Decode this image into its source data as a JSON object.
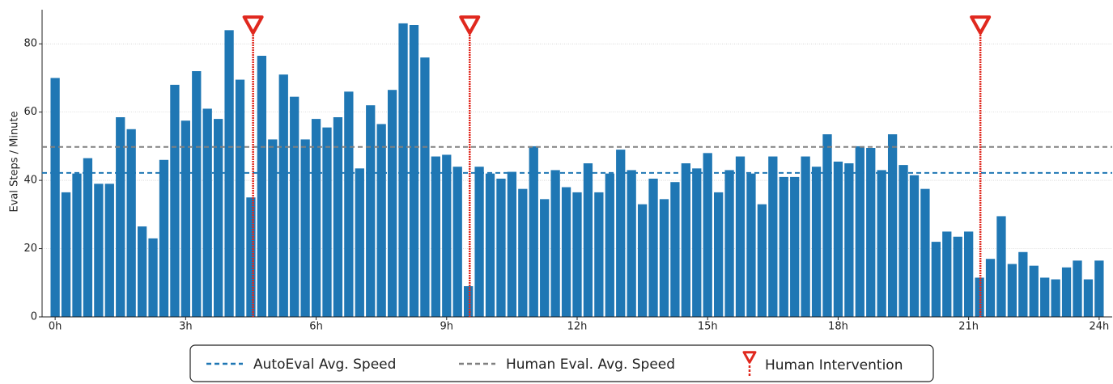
{
  "chart_data": {
    "type": "bar",
    "ylabel": "Eval Steps / Minute",
    "color": "#1f77b4",
    "x": [
      0,
      0.25,
      0.5,
      0.75,
      1,
      1.25,
      1.5,
      1.75,
      2,
      2.25,
      2.5,
      2.75,
      3,
      3.25,
      3.5,
      3.75,
      4,
      4.25,
      4.5,
      4.75,
      5,
      5.25,
      5.5,
      5.75,
      6,
      6.25,
      6.5,
      6.75,
      7,
      7.25,
      7.5,
      7.75,
      8,
      8.25,
      8.5,
      8.75,
      9,
      9.25,
      9.5,
      9.75,
      10,
      10.25,
      10.5,
      10.75,
      11,
      11.25,
      11.5,
      11.75,
      12,
      12.25,
      12.5,
      12.75,
      13,
      13.25,
      13.5,
      13.75,
      14,
      14.25,
      14.5,
      14.75,
      15,
      15.25,
      15.5,
      15.75,
      16,
      16.25,
      16.5,
      16.75,
      17,
      17.25,
      17.5,
      17.75,
      18,
      18.25,
      18.5,
      18.75,
      19,
      19.25,
      19.5,
      19.75,
      20,
      20.25,
      20.5,
      20.75,
      21,
      21.25,
      21.5,
      21.75,
      22,
      22.25,
      22.5,
      22.75,
      23,
      23.25,
      23.5,
      23.75,
      24
    ],
    "values": [
      70,
      36.5,
      42,
      46.5,
      39,
      39,
      58.5,
      55,
      26.5,
      23,
      46,
      68,
      57.5,
      72,
      61,
      58,
      84,
      69.5,
      35,
      76.5,
      52,
      71,
      64.5,
      52,
      58,
      55.5,
      58.5,
      66,
      43.5,
      62,
      56.5,
      66.5,
      86,
      85.5,
      76,
      47,
      47.5,
      44,
      9,
      44,
      42,
      40.5,
      42.5,
      37.5,
      50,
      34.5,
      43,
      38,
      36.5,
      45,
      36.5,
      42,
      49,
      43,
      33,
      40.5,
      34.5,
      39.5,
      45,
      43.5,
      48,
      36.5,
      43,
      47,
      42,
      33,
      47,
      41,
      41,
      47,
      44,
      53.5,
      45.5,
      45,
      50,
      49.5,
      43,
      53.5,
      44.5,
      41.5,
      37.5,
      22,
      25,
      23.5,
      25,
      11.5,
      17,
      29.5,
      15.5,
      19,
      15,
      11.5,
      11,
      14.5,
      16.5,
      11,
      16.5
    ],
    "reference_lines": [
      {
        "name": "AutoEval Avg. Speed",
        "value": 42.2,
        "color": "#1f77b4"
      },
      {
        "name": "Human Eval. Avg. Speed",
        "value": 49.8,
        "color": "#808080"
      }
    ],
    "interventions": {
      "name": "Human Intervention",
      "x": [
        4.55,
        9.53,
        21.27
      ],
      "color": "#e0281e"
    },
    "xlim": [
      -0.3,
      24.3
    ],
    "xticks": [
      {
        "value": 0,
        "label": "0h"
      },
      {
        "value": 3,
        "label": "3h"
      },
      {
        "value": 6,
        "label": "6h"
      },
      {
        "value": 9,
        "label": "9h"
      },
      {
        "value": 12,
        "label": "12h"
      },
      {
        "value": 15,
        "label": "15h"
      },
      {
        "value": 18,
        "label": "18h"
      },
      {
        "value": 21,
        "label": "21h"
      },
      {
        "value": 24,
        "label": "24h"
      }
    ],
    "ylim": [
      0,
      90
    ],
    "yticks": [
      0,
      20,
      40,
      60,
      80
    ],
    "grid": true
  }
}
